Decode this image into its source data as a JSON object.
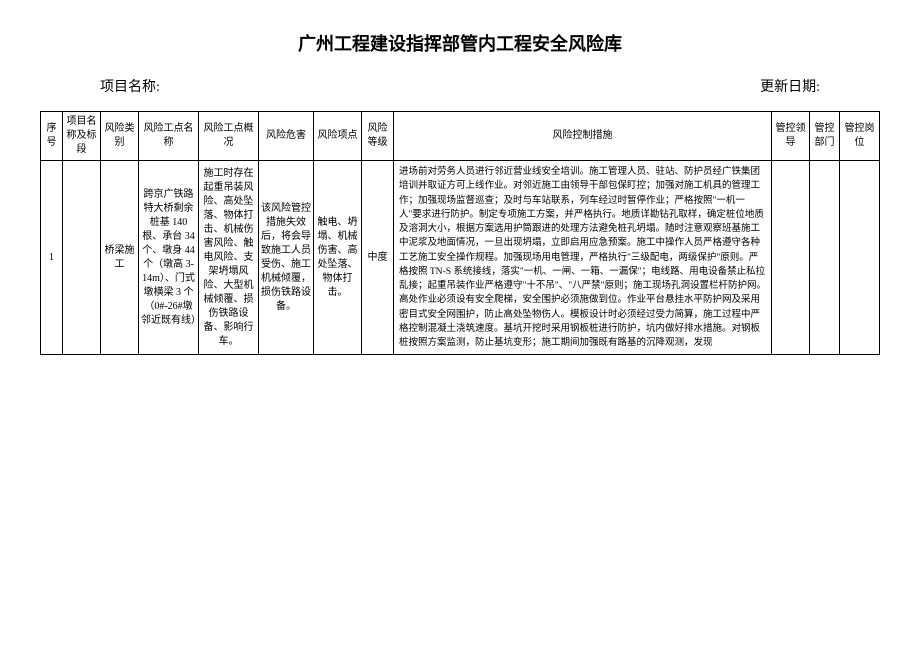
{
  "title": "广州工程建设指挥部管内工程安全风险库",
  "header": {
    "project_label": "项目名称:",
    "date_label": "更新日期:"
  },
  "table": {
    "columns": {
      "seq": "序号",
      "project": "项目名称及标段",
      "category": "风险类别",
      "point_name": "风险工点名称",
      "point_status": "风险工点概况",
      "hazard": "风险危害",
      "risk_point": "风险项点",
      "level": "风险等级",
      "measures": "风险控制措施",
      "leader": "管控领导",
      "dept": "管控部门",
      "post": "管控岗位"
    },
    "rows": [
      {
        "seq": "1",
        "project": "",
        "category": "桥梁施工",
        "point_name": "跨京广铁路特大桥剩余桩基 140根、承台 34个、墩身 44个（墩高 3-14m）、门式墩横梁 3 个（0#-26#墩邻近既有线）",
        "point_status": "施工时存在起重吊装风险、高处坠落、物体打击、机械伤害风险、触电风险、支架坍塌风险、大型机械倾覆、损伤铁路设备、影响行车。",
        "hazard": "该风险管控措施失效后，将会导致施工人员受伤、施工机械倾覆，损伤铁路设备。",
        "risk_point": "触电、坍塌、机械伤害、高处坠落、物体打击。",
        "level": "中度",
        "measures": "进场前对劳务人员进行邻近营业线安全培训。施工管理人员、驻站、防护员经广铁集团培训并取证方可上线作业。对邻近施工由领导干部包保盯控；加强对施工机具的管理工作；加强现场监督巡查；及时与车站联系，列车经过时暂停作业；严格按照\"一机一人\"要求进行防护。制定专项施工方案，并严格执行。地质详勘钻孔取样，确定桩位地质及溶洞大小，根据方案选用护筒跟进的处理方法避免桩孔坍塌。随时注意观察班基施工中泥浆及地面情况，一旦出现坍塌，立即启用应急预案。施工中操作人员严格遵守各种工艺施工安全操作规程。加强现场用电管理，严格执行\"三级配电，两级保护\"原则。严格按照 TN-S 系统接线，落实\"一机、一闸、一箱、一漏保\"；电线路、用电设备禁止私拉乱接；起重吊装作业严格遵守\"十不吊\"、\"八严禁\"原则；施工现场孔洞设置栏杆防护网。高处作业必须设有安全爬梯，安全围护必须施做到位。作业平台悬挂水平防护网及采用密目式安全网围护，防止高处坠物伤人。模板设计时必须经过受力简算，施工过程中严格控制混凝土浇筑速度。基坑开挖时采用钢板桩进行防护，坑内做好排水措施。对钢板桩按照方案监测，防止基坑变形；施工期间加强既有路基的沉降观测，发现",
        "leader": "",
        "dept": "",
        "post": ""
      }
    ]
  },
  "colors": {
    "background": "#ffffff",
    "border": "#000000",
    "text": "#000000"
  },
  "typography": {
    "title_fontsize": 18,
    "header_fontsize": 14,
    "table_fontsize": 10,
    "font_family": "SimSun"
  }
}
